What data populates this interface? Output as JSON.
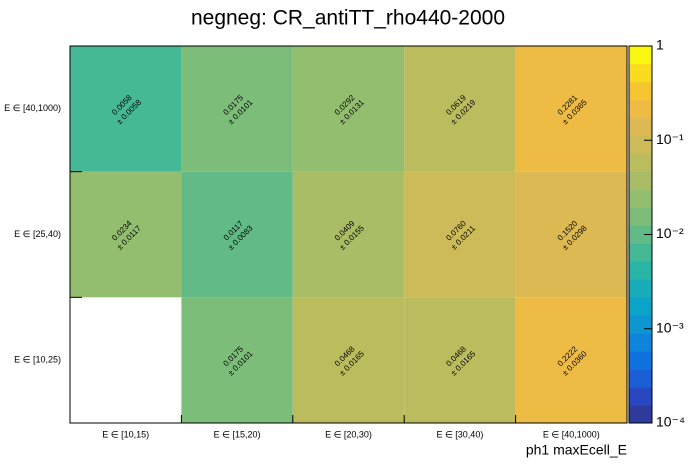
{
  "chart_data": {
    "type": "heatmap",
    "title": "negneg: CR_antiTT_rho440-2000",
    "x_label": "ph1 maxEcell_E",
    "x_categories": [
      "E ∈ [10,15)",
      "E ∈ [15,20)",
      "E ∈ [20,30)",
      "E ∈ [30,40)",
      "E ∈ [40,1000)"
    ],
    "y_categories": [
      "E ∈ [10,25)",
      "E ∈ [25,40)",
      "E ∈ [40,1000)"
    ],
    "values": [
      [
        null,
        0.0175,
        0.0468,
        0.0468,
        0.2222
      ],
      [
        0.0234,
        0.0117,
        0.0409,
        0.076,
        0.152
      ],
      [
        0.0058,
        0.0175,
        0.0292,
        0.0619,
        0.2281
      ]
    ],
    "value_labels": [
      [
        null,
        "0.0175",
        "0.0468",
        "0.0468",
        "0.2222"
      ],
      [
        "0.0234",
        "0.0117",
        "0.0409",
        "0.0760",
        "0.1520"
      ],
      [
        "0.0058",
        "0.0175",
        "0.0292",
        "0.0619",
        "0.2281"
      ]
    ],
    "errors": [
      [
        null,
        0.0101,
        0.0165,
        0.0165,
        0.036
      ],
      [
        0.0117,
        0.0083,
        0.0155,
        0.0211,
        0.0298
      ],
      [
        0.0058,
        0.0101,
        0.0131,
        0.0219,
        0.0365
      ]
    ],
    "error_labels": [
      [
        null,
        "± 0.0101",
        "± 0.0165",
        "± 0.0165",
        "± 0.0360"
      ],
      [
        "± 0.0117",
        "± 0.0083",
        "± 0.0155",
        "± 0.0211",
        "± 0.0298"
      ],
      [
        "± 0.0058",
        "± 0.0101",
        "± 0.0131",
        "± 0.0219",
        "± 0.0365"
      ]
    ],
    "zlim": [
      0.0001,
      1
    ],
    "zscale": "log",
    "zticks": [
      {
        "value": 0.0001,
        "label": "10⁻⁴"
      },
      {
        "value": 0.001,
        "label": "10⁻³"
      },
      {
        "value": 0.01,
        "label": "10⁻²"
      },
      {
        "value": 0.1,
        "label": "10⁻¹"
      },
      1
    ],
    "palette": [
      "#2e3a9c",
      "#2a47c2",
      "#1b5fd4",
      "#1072de",
      "#0e85da",
      "#0d96d2",
      "#0ba4c8",
      "#18adb8",
      "#2ab4a6",
      "#45b995",
      "#62bb86",
      "#7cbd7a",
      "#93bd6f",
      "#a8bd66",
      "#bbbc5e",
      "#ccbb58",
      "#dcb953",
      "#eebc45",
      "#f8c532",
      "#f9dc20",
      "#f9f60f"
    ]
  }
}
